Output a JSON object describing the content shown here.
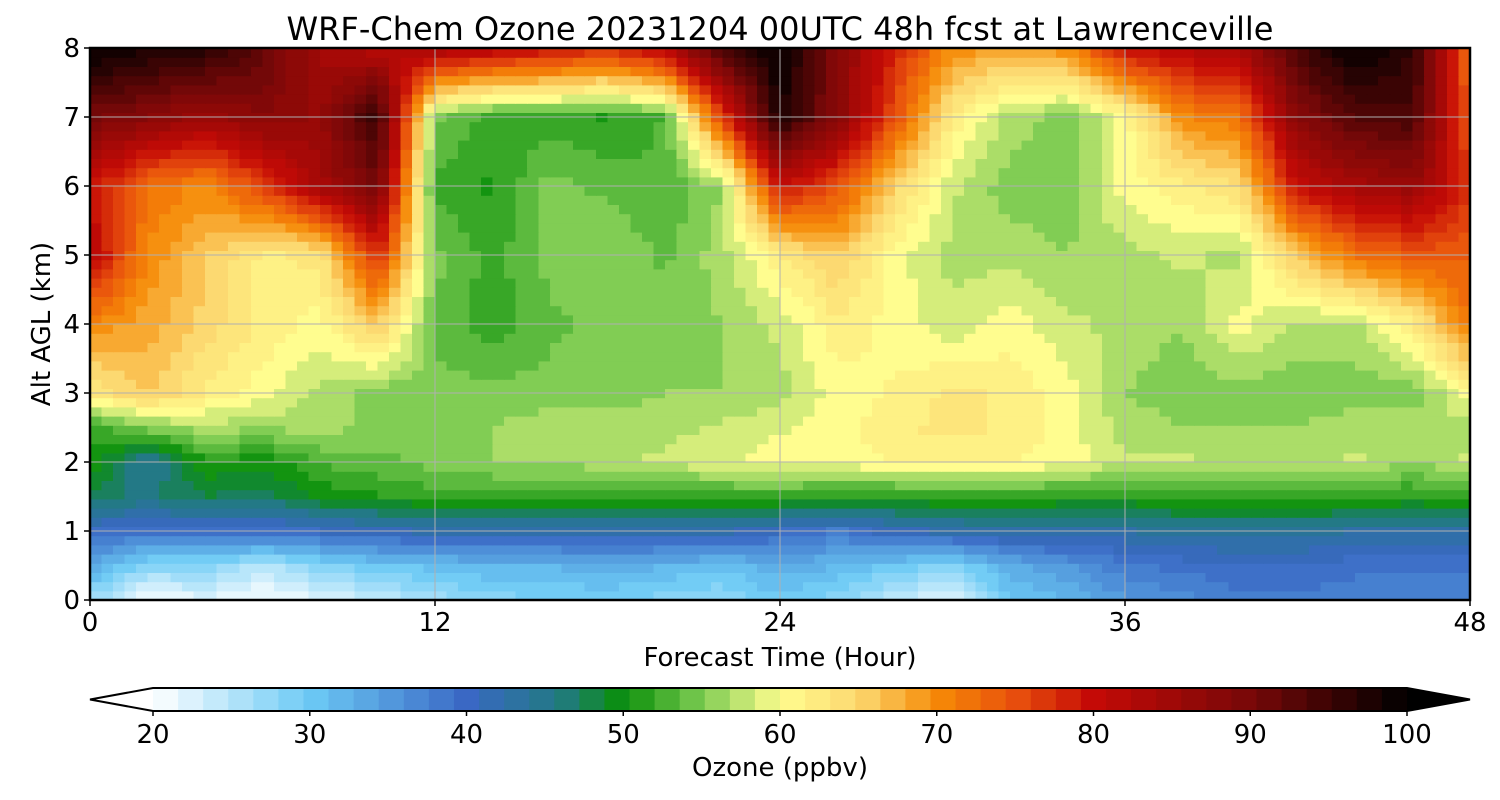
{
  "chart_data": {
    "type": "heatmap",
    "title": "WRF-Chem Ozone  20231204 00UTC 48h fcst at Lawrenceville",
    "xlabel": "Forecast Time (Hour)",
    "ylabel": "Alt AGL (km)",
    "xlim": [
      0,
      48
    ],
    "ylim": [
      0,
      8
    ],
    "xticks": [
      0,
      12,
      24,
      36,
      48
    ],
    "yticks": [
      0,
      1,
      2,
      3,
      4,
      5,
      6,
      7,
      8
    ],
    "grid": true,
    "colorbar": {
      "label": "Ozone  (ppbv)",
      "min": 20,
      "max": 100,
      "ticks": [
        20,
        30,
        40,
        50,
        60,
        70,
        80,
        90,
        100
      ],
      "extend": "both",
      "placement": "bottom",
      "colors": [
        {
          "v": 20,
          "c": "#ffffff"
        },
        {
          "v": 30,
          "c": "#6ccaf5"
        },
        {
          "v": 40,
          "c": "#3a68c4"
        },
        {
          "v": 46,
          "c": "#217a82"
        },
        {
          "v": 50,
          "c": "#0a8f0a"
        },
        {
          "v": 55,
          "c": "#7ccb52"
        },
        {
          "v": 60,
          "c": "#fffd8f"
        },
        {
          "v": 65,
          "c": "#fcd870"
        },
        {
          "v": 70,
          "c": "#f68a07"
        },
        {
          "v": 75,
          "c": "#e8500d"
        },
        {
          "v": 80,
          "c": "#c40a06"
        },
        {
          "v": 90,
          "c": "#780808"
        },
        {
          "v": 100,
          "c": "#000000"
        }
      ]
    },
    "x": [
      0,
      2,
      4,
      6,
      8,
      10,
      12,
      14,
      16,
      18,
      20,
      22,
      24,
      26,
      28,
      30,
      32,
      34,
      36,
      38,
      40,
      42,
      44,
      46,
      48
    ],
    "y": [
      0,
      0.5,
      1,
      1.5,
      2,
      2.5,
      3,
      4,
      5,
      6,
      7,
      8
    ],
    "values": [
      [
        27,
        20,
        22,
        20,
        22,
        24,
        26,
        28,
        29,
        29,
        28,
        27,
        30,
        28,
        24,
        22,
        30,
        32,
        35,
        36,
        38,
        38,
        37,
        37,
        37
      ],
      [
        33,
        28,
        28,
        25,
        28,
        30,
        31,
        32,
        32,
        33,
        32,
        31,
        33,
        32,
        30,
        28,
        33,
        35,
        38,
        39,
        40,
        40,
        39,
        39,
        39
      ],
      [
        40,
        39,
        39,
        39,
        40,
        41,
        42,
        42,
        42,
        42,
        42,
        42,
        40,
        38,
        41,
        42,
        43,
        43,
        43,
        44,
        44,
        44,
        43,
        43,
        43
      ],
      [
        47,
        46,
        48,
        47,
        50,
        51,
        52,
        52,
        52,
        52,
        52,
        52,
        52,
        51,
        51,
        52,
        52,
        51,
        51,
        52,
        52,
        52,
        52,
        51,
        52
      ],
      [
        51,
        44,
        51,
        50,
        53,
        54,
        55,
        56,
        56,
        57,
        58,
        59,
        60,
        60,
        61,
        61,
        61,
        60,
        58,
        58,
        57,
        57,
        58,
        56,
        58
      ],
      [
        52,
        55,
        57,
        56,
        57,
        55,
        55,
        56,
        57,
        57,
        57,
        58,
        59,
        60,
        62,
        63,
        62,
        60,
        57,
        56,
        56,
        56,
        57,
        57,
        57
      ],
      [
        62,
        66,
        62,
        60,
        57,
        55,
        55,
        55,
        55,
        55,
        56,
        56,
        57,
        60,
        61,
        63,
        62,
        60,
        56,
        55,
        55,
        55,
        55,
        55,
        60
      ],
      [
        70,
        68,
        65,
        62,
        60,
        66,
        54,
        52,
        54,
        55,
        55,
        56,
        58,
        62,
        60,
        58,
        60,
        58,
        57,
        56,
        60,
        57,
        57,
        62,
        72
      ],
      [
        82,
        70,
        66,
        62,
        63,
        78,
        55,
        52,
        55,
        56,
        54,
        57,
        62,
        66,
        60,
        57,
        57,
        56,
        57,
        58,
        57,
        66,
        72,
        74,
        74
      ],
      [
        80,
        72,
        70,
        76,
        84,
        90,
        52,
        51,
        55,
        54,
        53,
        56,
        80,
        75,
        65,
        58,
        55,
        55,
        60,
        62,
        64,
        80,
        84,
        86,
        77
      ],
      [
        90,
        88,
        85,
        88,
        86,
        96,
        55,
        52,
        52,
        51,
        53,
        76,
        98,
        88,
        75,
        62,
        57,
        55,
        60,
        70,
        72,
        88,
        93,
        94,
        74
      ],
      [
        100,
        98,
        97,
        92,
        84,
        82,
        84,
        82,
        80,
        78,
        82,
        94,
        100,
        88,
        78,
        70,
        68,
        70,
        80,
        82,
        84,
        94,
        100,
        96,
        72
      ]
    ]
  }
}
